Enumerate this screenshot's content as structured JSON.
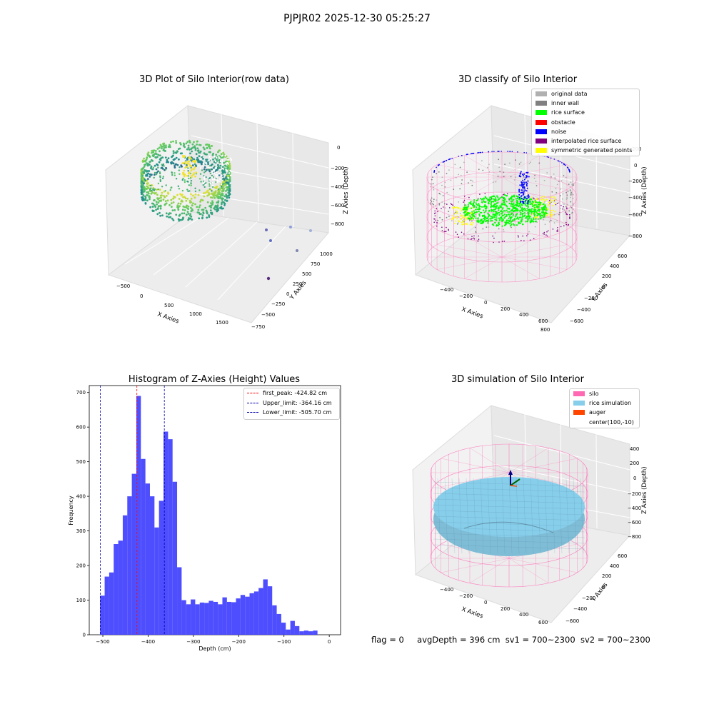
{
  "suptitle": "PJPJR02 2025-12-30 05:25:27",
  "panels": {
    "raw": {
      "title": "3D Plot of Silo Interior(row data)",
      "xlabel": "X Axies",
      "ylabel": "Y Axies",
      "zlabel": "Z Axies (Depth)",
      "xticks": [
        "-500",
        "0",
        "500",
        "1000",
        "1500"
      ],
      "yticks": [
        "-750",
        "-500",
        "-250",
        "0",
        "250",
        "500",
        "750",
        "1000"
      ],
      "zticks": [
        "0",
        "-200",
        "-400",
        "-600",
        "-800"
      ]
    },
    "classify": {
      "title": "3D classify of Silo Interior",
      "xlabel": "X Axies",
      "ylabel": "Y Axies",
      "zlabel": "Z Axies (Depth)",
      "xticks": [
        "-400",
        "-200",
        "0",
        "200",
        "400",
        "600",
        "800"
      ],
      "yticks": [
        "-600",
        "-400",
        "-200",
        "0",
        "200",
        "400",
        "600"
      ],
      "zticks": [
        "200",
        "0",
        "-200",
        "-400",
        "-600",
        "-800"
      ],
      "legend": [
        {
          "label": "original data",
          "color": "#b0b0b0"
        },
        {
          "label": "inner wall",
          "color": "#808080"
        },
        {
          "label": "rice surface",
          "color": "#00ff00"
        },
        {
          "label": "obstacle",
          "color": "#ff0000"
        },
        {
          "label": "noise",
          "color": "#0000ff"
        },
        {
          "label": "interpolated rice surface",
          "color": "#800080"
        },
        {
          "label": "symmetric generated points",
          "color": "#ffff00"
        }
      ]
    },
    "simulation": {
      "title": "3D simulation of Silo Interior",
      "xlabel": "X Axies",
      "ylabel": "Y Axies",
      "zlabel": "Z Axies (Depth)",
      "xticks": [
        "-400",
        "-200",
        "0",
        "200",
        "400",
        "600"
      ],
      "yticks": [
        "-600",
        "-400",
        "-200",
        "0",
        "200",
        "400",
        "600"
      ],
      "zticks": [
        "400",
        "200",
        "0",
        "-200",
        "-400",
        "-600",
        "-800"
      ],
      "legend": [
        {
          "label": "silo",
          "color": "#ff69b4"
        },
        {
          "label": "rice simulation",
          "color": "#87ceeb"
        },
        {
          "label": "auger",
          "color": "#ff4500"
        },
        {
          "label": "center(100,-10)",
          "color": ""
        }
      ]
    }
  },
  "status": {
    "flag": "flag = 0",
    "avg_depth": "avgDepth = 396 cm",
    "sv1": "sv1 = 700~2300",
    "sv2": "sv2 = 700~2300"
  },
  "chart_data": [
    {
      "type": "scatter",
      "title": "3D Plot of Silo Interior(row data)",
      "xlabel": "X Axies",
      "ylabel": "Y Axies",
      "zlabel": "Z Axies (Depth)",
      "xlim": [
        -600,
        1800
      ],
      "ylim": [
        -750,
        1000
      ],
      "zlim": [
        -900,
        0
      ],
      "description_series": [
        {
          "name": "",
          "points_summary": "dense ring of points, X -450..400, Y -450..450, Z -200..-500, coloured by depth (viridis)"
        }
      ]
    },
    {
      "type": "scatter",
      "title": "3D classify of Silo Interior",
      "xlabel": "X Axies",
      "ylabel": "Y Axies",
      "zlabel": "Z Axies (Depth)",
      "series": [
        {
          "name": "original data"
        },
        {
          "name": "inner wall"
        },
        {
          "name": "rice surface"
        },
        {
          "name": "obstacle"
        },
        {
          "name": "noise"
        },
        {
          "name": "interpolated rice surface"
        },
        {
          "name": "symmetric generated points"
        }
      ],
      "legend_position": "upper right"
    },
    {
      "type": "bar",
      "title": "Histogram of Z-Axies (Height) Values",
      "xlabel": "Depth (cm)",
      "ylabel": "Frequency",
      "xlim": [
        -530,
        25
      ],
      "ylim": [
        0,
        720
      ],
      "xticks": [
        -500,
        -400,
        -300,
        -200,
        -100,
        0
      ],
      "yticks": [
        0,
        100,
        200,
        300,
        400,
        500,
        600,
        700
      ],
      "bin_edges_start": -506,
      "bin_width": 10,
      "values": [
        113,
        168,
        180,
        262,
        272,
        345,
        400,
        465,
        690,
        508,
        437,
        400,
        310,
        387,
        587,
        565,
        442,
        195,
        100,
        88,
        102,
        88,
        93,
        92,
        98,
        95,
        88,
        108,
        95,
        94,
        105,
        115,
        110,
        120,
        125,
        135,
        160,
        140,
        85,
        60,
        35,
        15,
        40,
        25,
        10,
        12,
        10,
        12
      ],
      "vlines": [
        {
          "label": "first_peak: -424.82 cm",
          "x": -424.82,
          "color": "#ff0000"
        },
        {
          "label": "Upper_limit: -364.16 cm",
          "x": -364.16,
          "color": "#0000aa"
        },
        {
          "label": "Lower_limit: -505.70 cm",
          "x": -505.7,
          "color": "#0000aa"
        }
      ],
      "bar_color": "#4444ff",
      "legend_position": "upper right"
    },
    {
      "type": "surface",
      "title": "3D simulation of Silo Interior",
      "xlabel": "X Axies",
      "ylabel": "Y Axies",
      "zlabel": "Z Axies (Depth)",
      "series": [
        {
          "name": "silo"
        },
        {
          "name": "rice simulation"
        },
        {
          "name": "auger"
        },
        {
          "name": "center(100,-10)"
        }
      ],
      "legend_position": "upper right"
    }
  ]
}
